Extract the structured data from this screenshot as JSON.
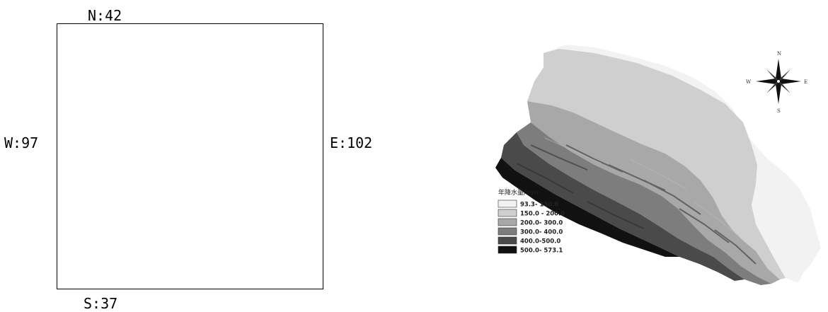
{
  "bounds": {
    "north": "N:42",
    "south": "S:37",
    "west": "W:97",
    "east": "E:102"
  },
  "map": {
    "compass": {
      "n": "N",
      "s": "S",
      "e": "E",
      "w": "W"
    },
    "legend": {
      "title": "年降水量/mm",
      "classes": [
        {
          "label": "93.3- 150.0",
          "color": "#f2f2f2"
        },
        {
          "label": "150.0 - 200.0",
          "color": "#cfcfcf"
        },
        {
          "label": "200.0- 300.0",
          "color": "#a8a8a8"
        },
        {
          "label": "300.0- 400.0",
          "color": "#7d7d7d"
        },
        {
          "label": "400.0-500.0",
          "color": "#4a4a4a"
        },
        {
          "label": "500.0- 573.1",
          "color": "#111111"
        }
      ]
    }
  }
}
